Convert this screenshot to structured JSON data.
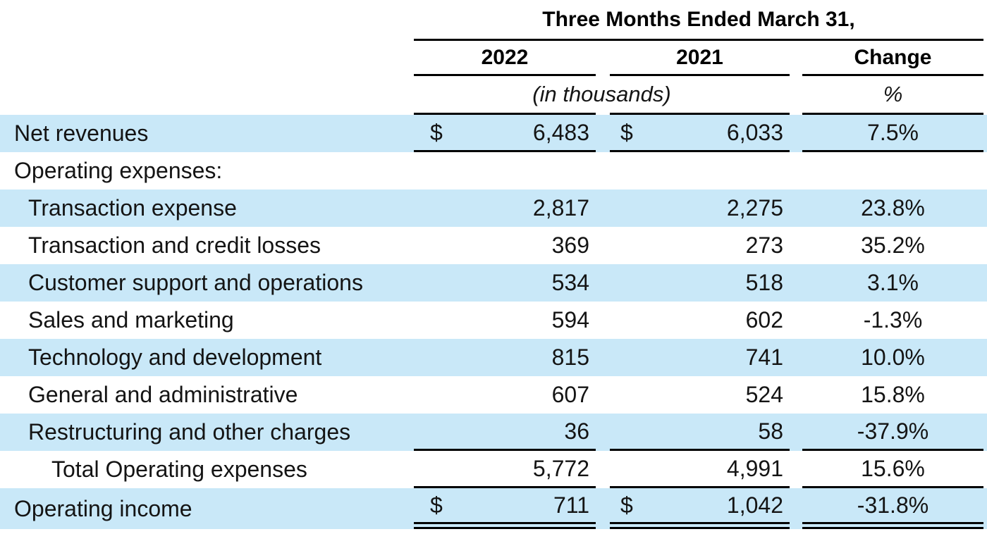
{
  "table": {
    "group_header": "Three Months Ended March 31,",
    "columns": {
      "y2022": "2022",
      "y2021": "2021",
      "change": "Change"
    },
    "subheader": {
      "units": "(in thousands)",
      "pct": "%"
    },
    "rows": [
      {
        "label": "Net revenues",
        "indent": 0,
        "currency": "$",
        "y2022": "6,483",
        "y2021": "6,033",
        "change": "7.5%",
        "highlight": true
      },
      {
        "label": "Operating expenses:",
        "indent": 0,
        "highlight": false
      },
      {
        "label": "Transaction expense",
        "indent": 1,
        "y2022": "2,817",
        "y2021": "2,275",
        "change": "23.8%",
        "highlight": true
      },
      {
        "label": "Transaction and credit losses",
        "indent": 1,
        "y2022": "369",
        "y2021": "273",
        "change": "35.2%",
        "highlight": false
      },
      {
        "label": "Customer support and operations",
        "indent": 1,
        "y2022": "534",
        "y2021": "518",
        "change": "3.1%",
        "highlight": true
      },
      {
        "label": "Sales and marketing",
        "indent": 1,
        "y2022": "594",
        "y2021": "602",
        "change": "-1.3%",
        "highlight": false
      },
      {
        "label": "Technology and development",
        "indent": 1,
        "y2022": "815",
        "y2021": "741",
        "change": "10.0%",
        "highlight": true
      },
      {
        "label": "General and administrative",
        "indent": 1,
        "y2022": "607",
        "y2021": "524",
        "change": "15.8%",
        "highlight": false
      },
      {
        "label": "Restructuring and other charges",
        "indent": 1,
        "y2022": "36",
        "y2021": "58",
        "change": "-37.9%",
        "highlight": true
      },
      {
        "label": "Total Operating expenses",
        "indent": 2,
        "y2022": "5,772",
        "y2021": "4,991",
        "change": "15.6%",
        "highlight": false
      },
      {
        "label": "Operating income",
        "indent": 0,
        "currency": "$",
        "y2022": "711",
        "y2021": "1,042",
        "change": "-31.8%",
        "highlight": true
      }
    ],
    "colors": {
      "row_highlight": "#C9E8F8",
      "border": "#000000",
      "text": "#141414"
    }
  }
}
